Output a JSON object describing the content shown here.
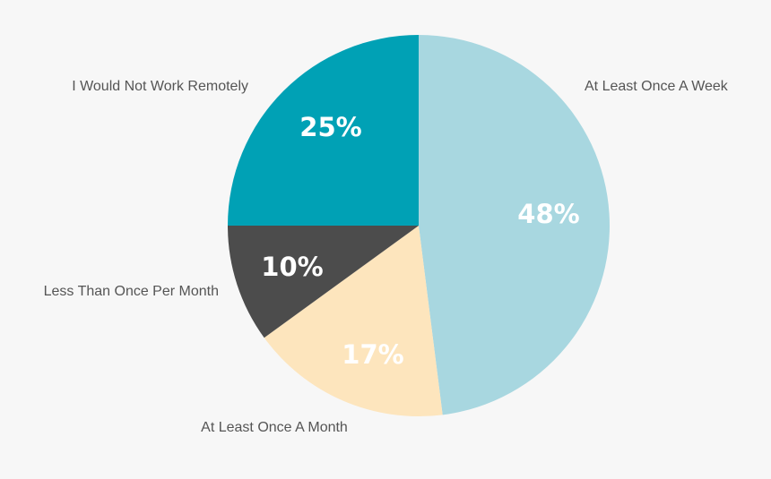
{
  "chart_data": {
    "type": "pie",
    "categories": [
      "At Least Once A Week",
      "At Least Once A Month",
      "Less Than Once Per Month",
      "I Would Not Work Remotely"
    ],
    "values": [
      48,
      17,
      10,
      25
    ],
    "value_labels": [
      "48%",
      "17%",
      "10%",
      "25%"
    ],
    "colors": [
      "#a8d7e0",
      "#fde5bd",
      "#4c4c4c",
      "#00a1b5"
    ],
    "start_angle": "12 o'clock",
    "direction": "clockwise"
  }
}
